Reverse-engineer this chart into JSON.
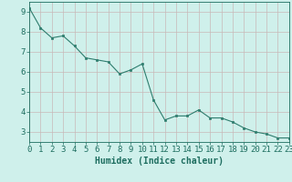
{
  "x": [
    0,
    1,
    2,
    3,
    4,
    5,
    6,
    7,
    8,
    9,
    10,
    11,
    12,
    13,
    14,
    15,
    16,
    17,
    18,
    19,
    20,
    21,
    22,
    23
  ],
  "y": [
    9.2,
    8.2,
    7.7,
    7.8,
    7.3,
    6.7,
    6.6,
    6.5,
    5.9,
    6.1,
    6.4,
    4.6,
    3.6,
    3.8,
    3.8,
    4.1,
    3.7,
    3.7,
    3.5,
    3.2,
    3.0,
    2.9,
    2.7,
    2.7
  ],
  "xlim": [
    0,
    23
  ],
  "ylim": [
    2.5,
    9.5
  ],
  "xticks": [
    0,
    1,
    2,
    3,
    4,
    5,
    6,
    7,
    8,
    9,
    10,
    11,
    12,
    13,
    14,
    15,
    16,
    17,
    18,
    19,
    20,
    21,
    22,
    23
  ],
  "yticks": [
    3,
    4,
    5,
    6,
    7,
    8,
    9
  ],
  "xlabel": "Humidex (Indice chaleur)",
  "line_color": "#2e7d6e",
  "marker_color": "#2e7d6e",
  "bg_color": "#cff0eb",
  "grid_color": "#c8b8b8",
  "axis_label_color": "#1e6e60",
  "tick_color": "#1e6e60",
  "xlabel_fontsize": 7,
  "tick_fontsize": 6.5
}
